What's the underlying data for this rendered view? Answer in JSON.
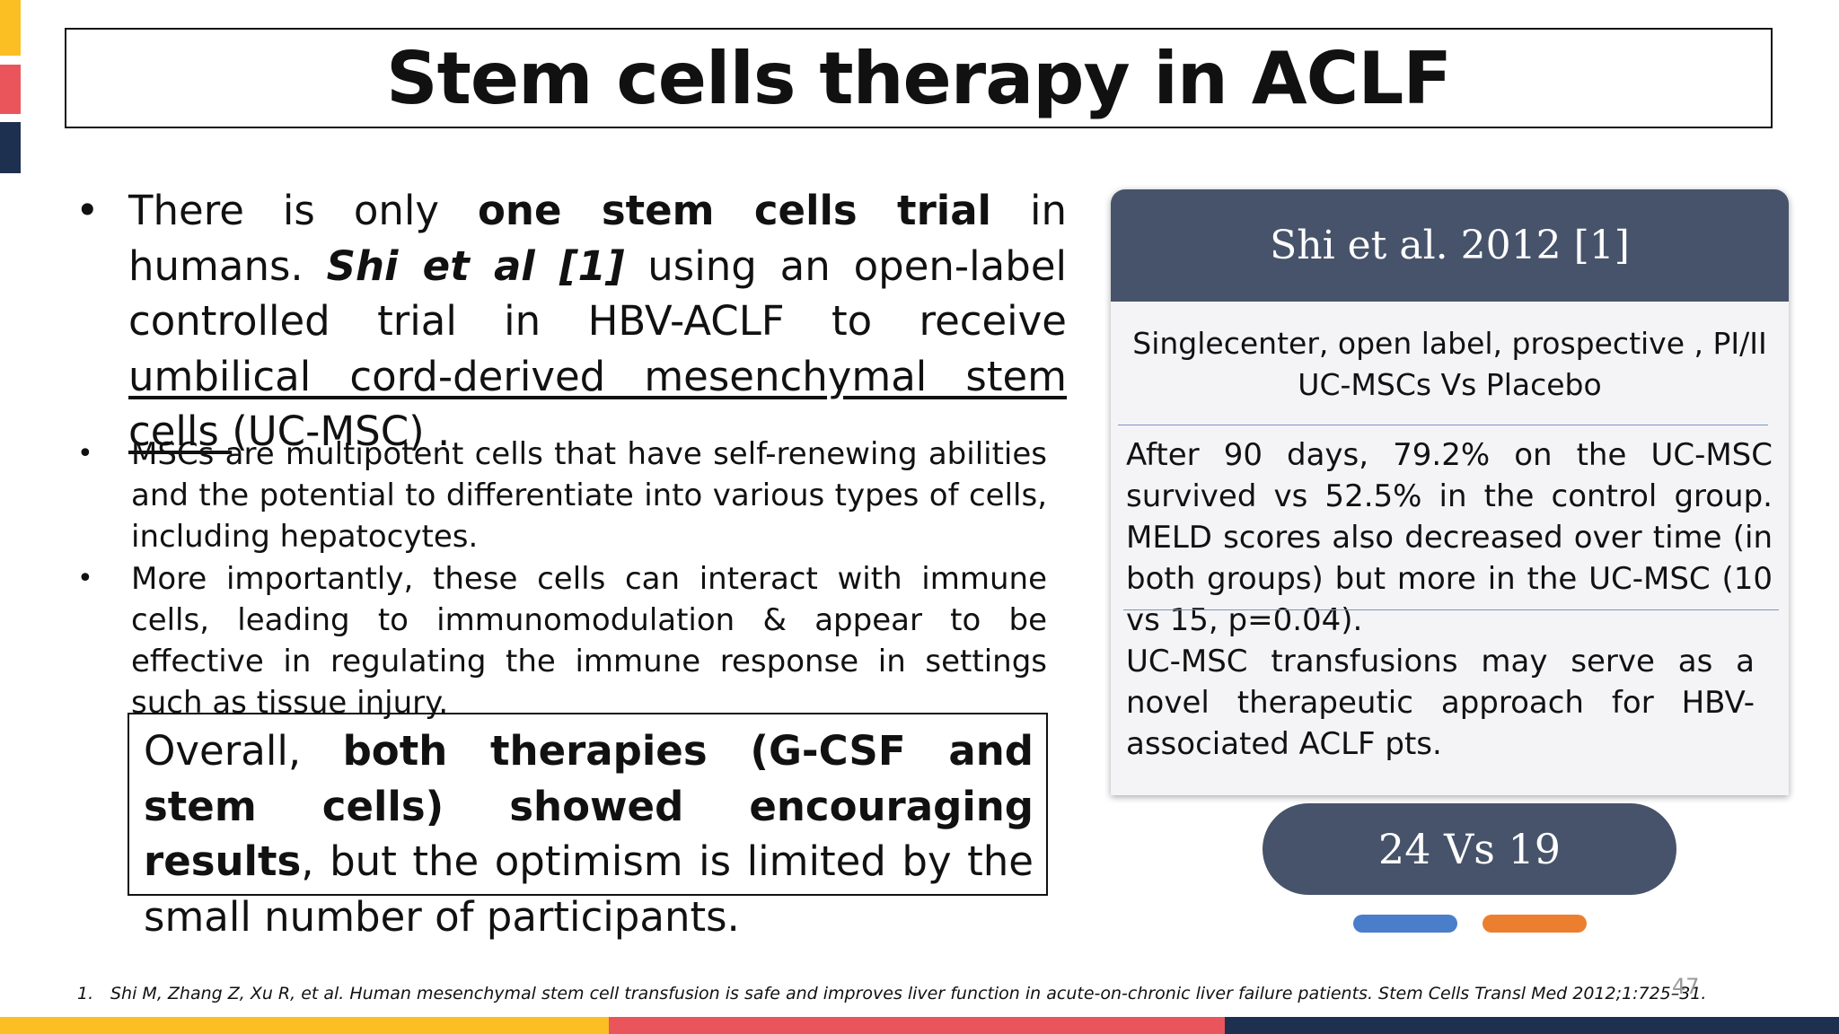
{
  "title": "Stem cells therapy in ACLF",
  "bullet_glyph": "•",
  "bullet1": {
    "t1": "There is only ",
    "b1": "one stem cells trial",
    "t2": " in humans. ",
    "bi1": "Shi et al [1]",
    "t3": " using an open-label controlled trial in HBV-ACLF to receive ",
    "u1": "umbilical cord-derived mesenchymal stem cells ",
    "t4": "(UC-MSC) ."
  },
  "bullet2": "MSCs are multipotent cells that have self-renewing abilities and the potential to differentiate into various types of cells, including hepatocytes.",
  "bullet3": "More importantly, these cells can interact with immune cells, leading to immunomodulation & appear to be effective in regulating the immune response in settings such as tissue injury.",
  "overall": {
    "t1": "Overall, ",
    "b1": "both therapies (G-CSF and stem cells) showed encouraging results",
    "t2": ", but the optimism is limited by the small number of participants."
  },
  "card": {
    "header": "Shi et al. 2012 [1]",
    "section1_line1": "Singlecenter, open label, prospective , PI/II",
    "section1_line2": "UC-MSCs Vs Placebo",
    "section2": "After 90 days, 79.2% on the UC-MSC survived vs 52.5% in the control group. MELD scores also decreased over time (in both groups) but more in the UC-MSC (10 vs 15, p=0.04).",
    "section3": "UC-MSC transfusions may serve as a novel therapeutic approach for HBV-associated ACLF pts."
  },
  "pill": "24  Vs 19",
  "footnote": {
    "number": "1.",
    "text": "Shi M, Zhang Z, Xu R, et al. Human mesenchymal stem cell transfusion is safe and improves liver function in acute-on-chronic liver failure patients. Stem Cells Transl Med 2012;1:725–31."
  },
  "page_number": "47",
  "colors": {
    "yellow": "#fbbf24",
    "red": "#e9555a",
    "navy": "#1e3050",
    "slate": "#46536a",
    "blue": "#4a7ecb",
    "orange": "#ec7f2f"
  }
}
